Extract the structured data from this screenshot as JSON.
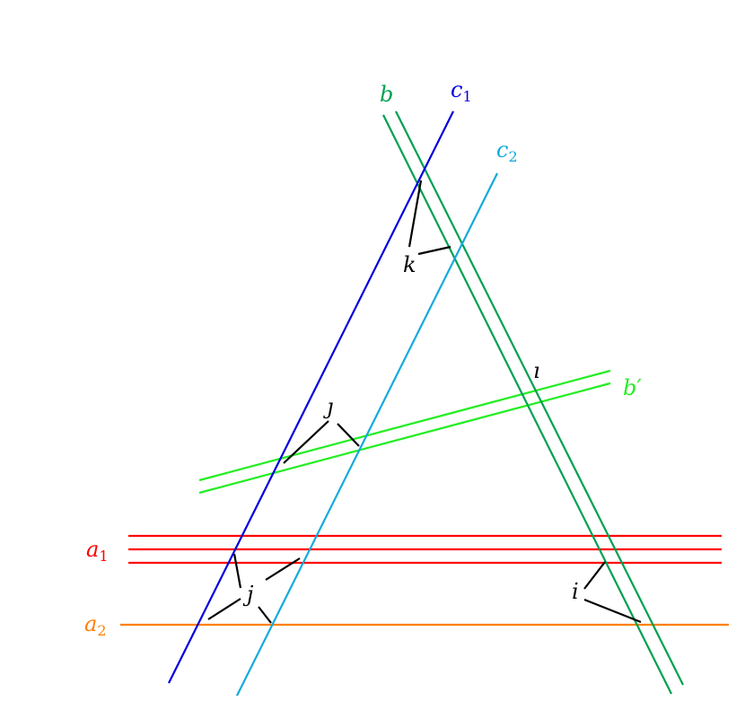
{
  "colors": {
    "a1": "#ff0000",
    "a2": "#ff8000",
    "b": "#00a050",
    "b_prime": "#22ee22",
    "c1": "#0000dd",
    "c2": "#11aadd",
    "marks": "#000000"
  },
  "labels": {
    "a1": {
      "base": "a",
      "sub": "1"
    },
    "a2": {
      "base": "a",
      "sub": "2"
    },
    "b": "b",
    "b_prime": "b′",
    "c1": {
      "base": "c",
      "sub": "1"
    },
    "c2": {
      "base": "c",
      "sub": "2"
    },
    "k": "k",
    "j": "j",
    "dotless_j": "ȷ",
    "i": "i",
    "dotless_i": "ı"
  }
}
